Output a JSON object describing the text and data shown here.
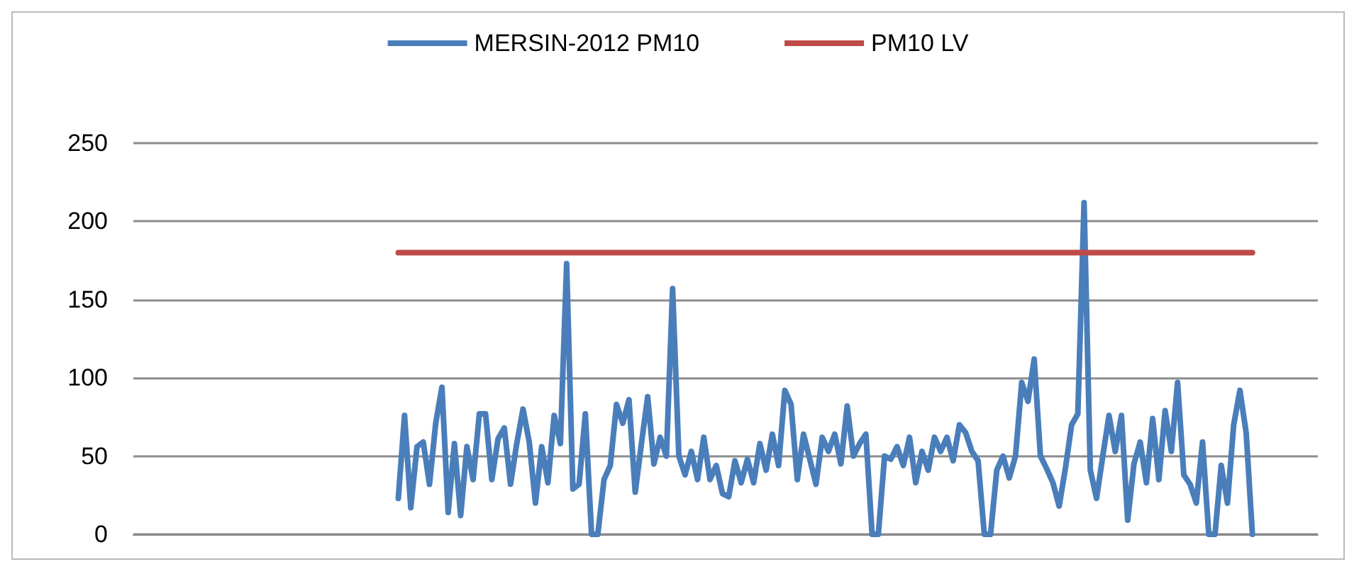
{
  "chart_data": {
    "type": "line",
    "categories": [
      null,
      null,
      null,
      null,
      null,
      null,
      null,
      null,
      null,
      null,
      null,
      null,
      null,
      null,
      null,
      null,
      null,
      null,
      null,
      null,
      null,
      null,
      null,
      null,
      null,
      null,
      null,
      null,
      null,
      null,
      null,
      null,
      null,
      null,
      null,
      null,
      null,
      null,
      null,
      null,
      null,
      null,
      null,
      null,
      null,
      null,
      null,
      null,
      null,
      null,
      null,
      null,
      null,
      null,
      null,
      null,
      null,
      null,
      null,
      null,
      null,
      null,
      null,
      null,
      null,
      null,
      null,
      null,
      null,
      null,
      null,
      null,
      null,
      null,
      null,
      null,
      null,
      null,
      null,
      null,
      null,
      null,
      null,
      null,
      null,
      null,
      null,
      null,
      null,
      null,
      null,
      null,
      null,
      null,
      null,
      null,
      null,
      null,
      null,
      null,
      null,
      null,
      null,
      null,
      null,
      null,
      null,
      null,
      null,
      null,
      null,
      null,
      null,
      null,
      null,
      null,
      null,
      null,
      null,
      null,
      null,
      null,
      null,
      null,
      null,
      null,
      null,
      null,
      null,
      null,
      null,
      null,
      null,
      null,
      null,
      null,
      null,
      null,
      null,
      null,
      null,
      null,
      null,
      null,
      null,
      null,
      null,
      null,
      null,
      null,
      null,
      null,
      null,
      null,
      null,
      null,
      null,
      null,
      null,
      null,
      null,
      null,
      null,
      null,
      null,
      null,
      null,
      null,
      null,
      null,
      null,
      null,
      null,
      null,
      null,
      null,
      null,
      null,
      null,
      null,
      null,
      null,
      null,
      null,
      null,
      null,
      null,
      null,
      null,
      null
    ],
    "series": [
      {
        "name": "MERSIN-2012 PM10",
        "color": "#4a7ebb",
        "values": [
          null,
          null,
          null,
          null,
          null,
          null,
          null,
          null,
          null,
          null,
          null,
          null,
          null,
          null,
          null,
          null,
          null,
          null,
          null,
          null,
          null,
          null,
          null,
          null,
          null,
          null,
          null,
          null,
          null,
          null,
          null,
          null,
          null,
          null,
          null,
          null,
          null,
          null,
          null,
          null,
          null,
          null,
          23,
          76,
          17,
          56,
          59,
          32,
          71,
          94,
          14,
          58,
          12,
          56,
          35,
          77,
          77,
          35,
          61,
          68,
          32,
          58,
          80,
          59,
          20,
          56,
          33,
          76,
          58,
          173,
          29,
          32,
          77,
          0,
          0,
          35,
          44,
          83,
          71,
          86,
          27,
          58,
          88,
          45,
          62,
          50,
          157,
          50,
          38,
          53,
          35,
          62,
          35,
          44,
          26,
          24,
          47,
          33,
          48,
          33,
          58,
          41,
          64,
          44,
          92,
          83,
          35,
          64,
          48,
          32,
          62,
          53,
          64,
          45,
          82,
          50,
          58,
          64,
          0,
          0,
          50,
          48,
          56,
          44,
          62,
          33,
          53,
          41,
          62,
          53,
          62,
          47,
          70,
          65,
          53,
          47,
          0,
          0,
          41,
          50,
          36,
          50,
          97,
          85,
          112,
          50,
          42,
          33,
          18,
          42,
          70,
          77,
          212,
          41,
          23,
          50,
          76,
          53,
          76,
          9,
          45,
          59,
          33,
          74,
          35,
          79,
          53,
          97,
          38,
          32,
          20,
          59,
          0,
          0,
          44,
          20,
          70,
          92,
          65,
          0,
          null,
          null,
          null,
          null,
          null,
          null,
          null,
          null,
          null,
          null
        ]
      },
      {
        "name": "PM10 LV",
        "color": "#be4b48",
        "values": [
          null,
          null,
          null,
          null,
          null,
          null,
          null,
          null,
          null,
          null,
          null,
          null,
          null,
          null,
          null,
          null,
          null,
          null,
          null,
          null,
          null,
          null,
          null,
          null,
          null,
          null,
          null,
          null,
          null,
          null,
          null,
          null,
          null,
          null,
          null,
          null,
          null,
          null,
          null,
          null,
          null,
          null,
          180,
          180,
          180,
          180,
          180,
          180,
          180,
          180,
          180,
          180,
          180,
          180,
          180,
          180,
          180,
          180,
          180,
          180,
          180,
          180,
          180,
          180,
          180,
          180,
          180,
          180,
          180,
          180,
          180,
          180,
          180,
          180,
          180,
          180,
          180,
          180,
          180,
          180,
          180,
          180,
          180,
          180,
          180,
          180,
          180,
          180,
          180,
          180,
          180,
          180,
          180,
          180,
          180,
          180,
          180,
          180,
          180,
          180,
          180,
          180,
          180,
          180,
          180,
          180,
          180,
          180,
          180,
          180,
          180,
          180,
          180,
          180,
          180,
          180,
          180,
          180,
          180,
          180,
          180,
          180,
          180,
          180,
          180,
          180,
          180,
          180,
          180,
          180,
          180,
          180,
          180,
          180,
          180,
          180,
          180,
          180,
          180,
          180,
          180,
          180,
          180,
          180,
          180,
          180,
          180,
          180,
          180,
          180,
          180,
          180,
          180,
          180,
          180,
          180,
          180,
          180,
          180,
          180,
          180,
          180,
          180,
          180,
          180,
          180,
          180,
          180,
          180,
          180,
          180,
          180,
          180,
          180,
          180,
          180,
          180,
          180,
          180,
          180,
          null,
          null,
          null,
          null,
          null,
          null,
          null,
          null,
          null,
          null
        ]
      }
    ],
    "ylim": [
      0,
      250
    ],
    "yticks": [
      0,
      50,
      100,
      150,
      200,
      250
    ],
    "grid": "y",
    "legend": "top",
    "tick_labels": "y",
    "line_style": "solid"
  }
}
